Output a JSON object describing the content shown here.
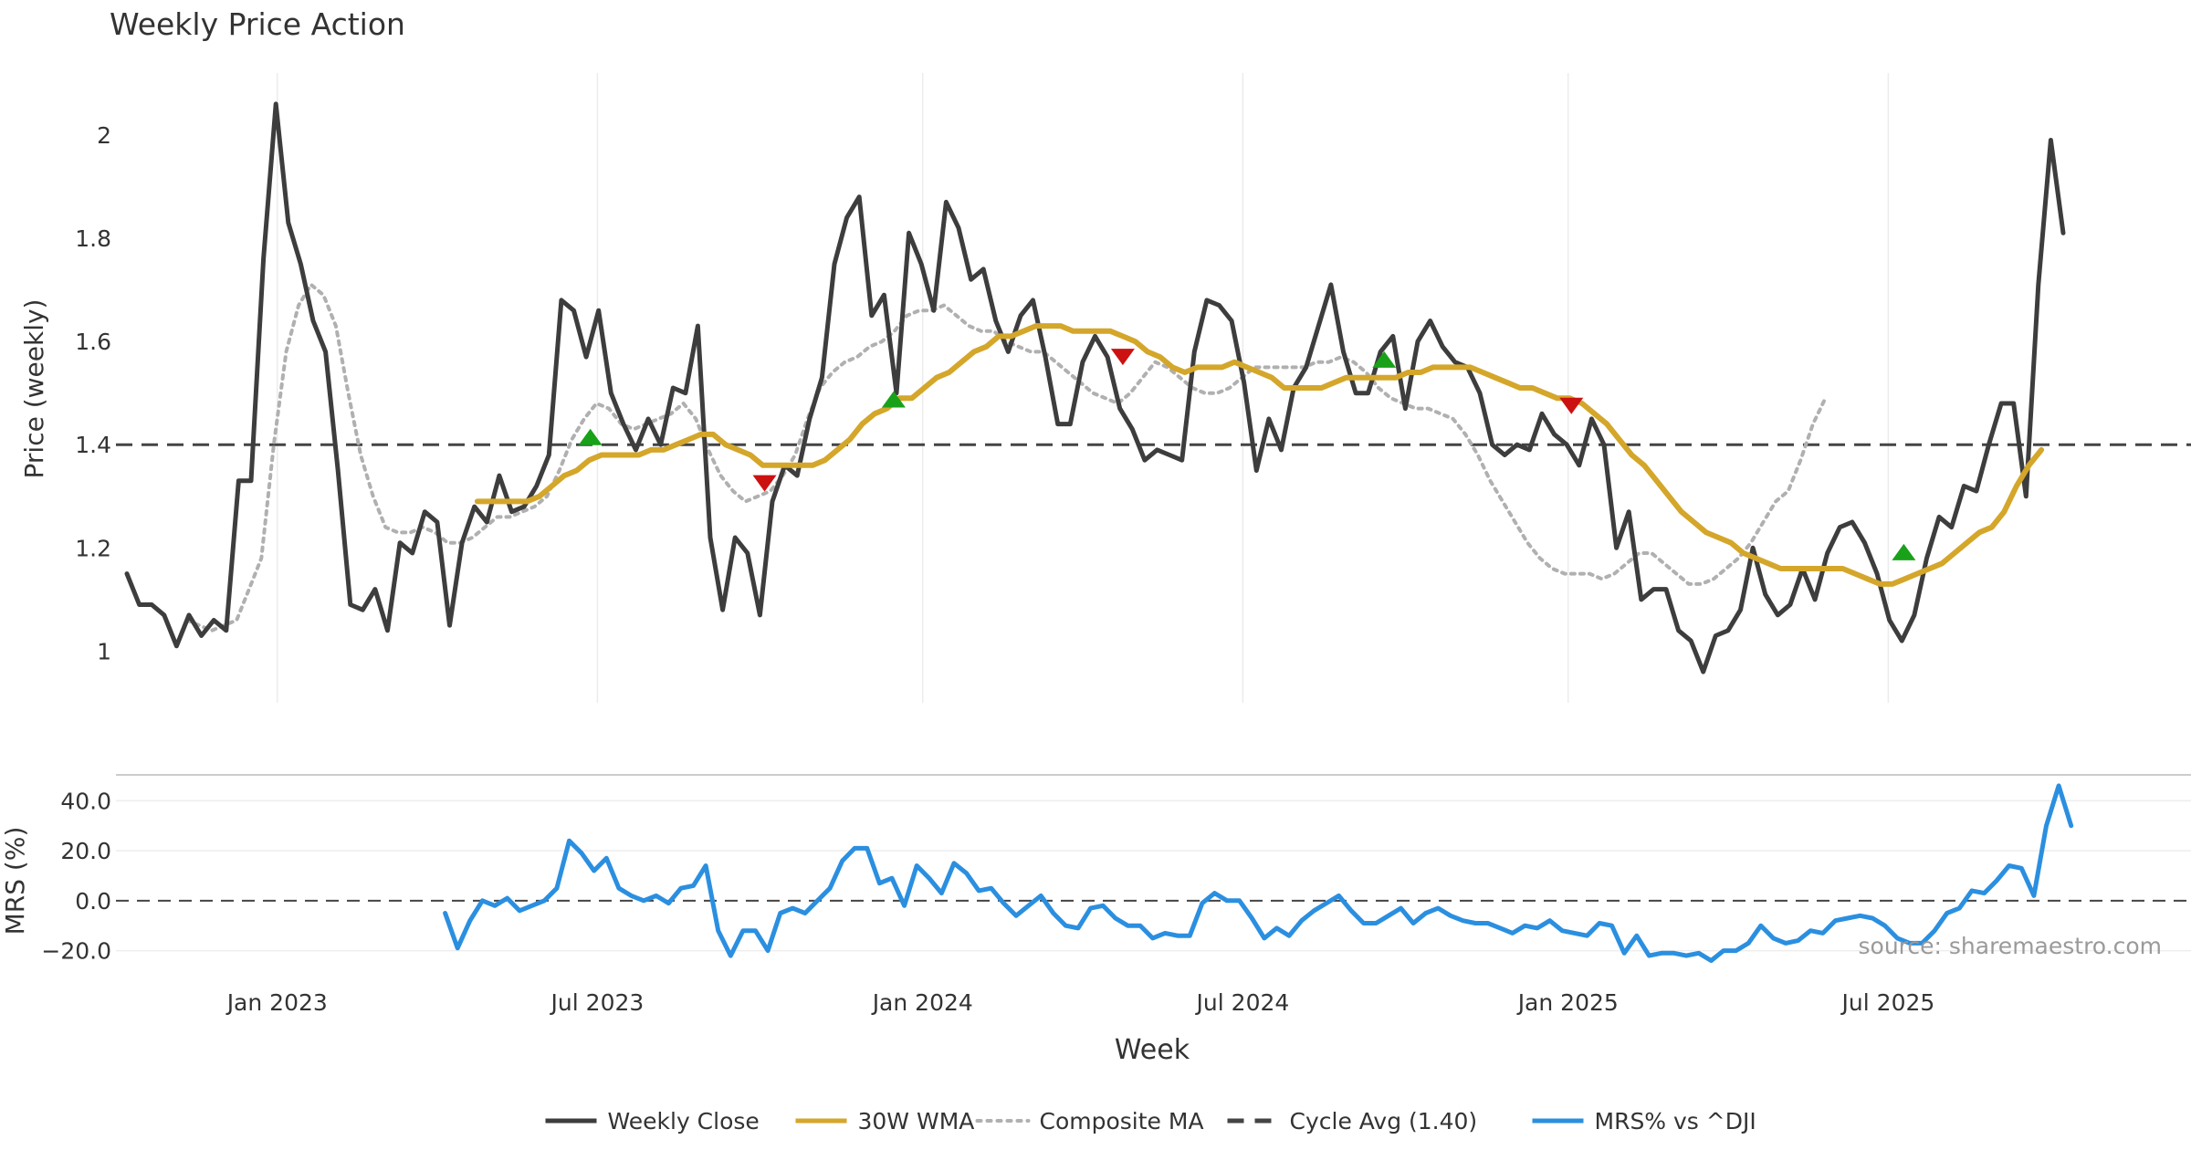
{
  "chart_data": [
    {
      "type": "line",
      "panel": "price",
      "title": "Weekly Price Action",
      "ylabel": "Price (weekly)",
      "ylim": [
        0.9,
        2.12
      ],
      "yticks": [
        1,
        1.2,
        1.4,
        1.6,
        1.8,
        2
      ],
      "ytick_labels": [
        "1",
        "1.2",
        "1.4",
        "1.6",
        "1.8",
        "2"
      ],
      "reference_line": 1.4,
      "series": [
        {
          "name": "Weekly Close",
          "color": "#3d3d3d",
          "style": "solid",
          "x_start": 2022.767,
          "step": 0.019231,
          "values": [
            1.15,
            1.09,
            1.09,
            1.07,
            1.01,
            1.07,
            1.03,
            1.06,
            1.04,
            1.33,
            1.33,
            1.76,
            2.06,
            1.83,
            1.75,
            1.64,
            1.58,
            1.35,
            1.09,
            1.08,
            1.12,
            1.04,
            1.21,
            1.19,
            1.27,
            1.25,
            1.05,
            1.21,
            1.28,
            1.25,
            1.34,
            1.27,
            1.28,
            1.32,
            1.38,
            1.68,
            1.66,
            1.57,
            1.66,
            1.5,
            1.44,
            1.39,
            1.45,
            1.4,
            1.51,
            1.5,
            1.63,
            1.22,
            1.08,
            1.22,
            1.19,
            1.07,
            1.29,
            1.36,
            1.34,
            1.45,
            1.53,
            1.75,
            1.84,
            1.88,
            1.65,
            1.69,
            1.5,
            1.81,
            1.75,
            1.66,
            1.87,
            1.82,
            1.72,
            1.74,
            1.64,
            1.58,
            1.65,
            1.68,
            1.57,
            1.44,
            1.44,
            1.56,
            1.61,
            1.57,
            1.47,
            1.43,
            1.37,
            1.39,
            1.38,
            1.37,
            1.58,
            1.68,
            1.67,
            1.64,
            1.52,
            1.35,
            1.45,
            1.39,
            1.51,
            1.55,
            1.63,
            1.71,
            1.58,
            1.5,
            1.5,
            1.58,
            1.61,
            1.47,
            1.6,
            1.64,
            1.59,
            1.56,
            1.55,
            1.5,
            1.4,
            1.38,
            1.4,
            1.39,
            1.46,
            1.42,
            1.4,
            1.36,
            1.45,
            1.4,
            1.2,
            1.27,
            1.1,
            1.12,
            1.12,
            1.04,
            1.02,
            0.96,
            1.03,
            1.04,
            1.08,
            1.2,
            1.11,
            1.07,
            1.09,
            1.16,
            1.1,
            1.19,
            1.24,
            1.25,
            1.21,
            1.15,
            1.06,
            1.02,
            1.07,
            1.18,
            1.26,
            1.24,
            1.32,
            1.31,
            1.4,
            1.48,
            1.48,
            1.3,
            1.71,
            1.99,
            1.81
          ]
        },
        {
          "name": "30W WMA",
          "color": "#d4a62a",
          "style": "solid",
          "x_start": 2023.31,
          "step": 0.019231,
          "values": [
            1.29,
            1.29,
            1.29,
            1.29,
            1.29,
            1.3,
            1.32,
            1.34,
            1.35,
            1.37,
            1.38,
            1.38,
            1.38,
            1.38,
            1.39,
            1.39,
            1.4,
            1.41,
            1.42,
            1.42,
            1.4,
            1.39,
            1.38,
            1.36,
            1.36,
            1.36,
            1.36,
            1.36,
            1.37,
            1.39,
            1.41,
            1.44,
            1.46,
            1.47,
            1.49,
            1.49,
            1.51,
            1.53,
            1.54,
            1.56,
            1.58,
            1.59,
            1.61,
            1.61,
            1.62,
            1.63,
            1.63,
            1.63,
            1.62,
            1.62,
            1.62,
            1.62,
            1.61,
            1.6,
            1.58,
            1.57,
            1.55,
            1.54,
            1.55,
            1.55,
            1.55,
            1.56,
            1.55,
            1.54,
            1.53,
            1.51,
            1.51,
            1.51,
            1.51,
            1.52,
            1.53,
            1.53,
            1.53,
            1.53,
            1.53,
            1.54,
            1.54,
            1.55,
            1.55,
            1.55,
            1.55,
            1.54,
            1.53,
            1.52,
            1.51,
            1.51,
            1.5,
            1.49,
            1.49,
            1.48,
            1.46,
            1.44,
            1.41,
            1.38,
            1.36,
            1.33,
            1.3,
            1.27,
            1.25,
            1.23,
            1.22,
            1.21,
            1.19,
            1.18,
            1.17,
            1.16,
            1.16,
            1.16,
            1.16,
            1.16,
            1.16,
            1.15,
            1.14,
            1.13,
            1.13,
            1.14,
            1.15,
            1.16,
            1.17,
            1.19,
            1.21,
            1.23,
            1.24,
            1.27,
            1.32,
            1.36,
            1.39
          ]
        },
        {
          "name": "Composite MA",
          "color": "#b0b0b0",
          "style": "dotted",
          "x_start": 2022.86,
          "step": 0.019231,
          "values": [
            1.06,
            1.05,
            1.04,
            1.05,
            1.06,
            1.12,
            1.18,
            1.4,
            1.58,
            1.67,
            1.71,
            1.69,
            1.63,
            1.5,
            1.38,
            1.3,
            1.24,
            1.23,
            1.23,
            1.24,
            1.23,
            1.21,
            1.21,
            1.22,
            1.24,
            1.26,
            1.26,
            1.27,
            1.28,
            1.3,
            1.35,
            1.41,
            1.45,
            1.48,
            1.47,
            1.44,
            1.43,
            1.44,
            1.45,
            1.46,
            1.48,
            1.45,
            1.39,
            1.34,
            1.31,
            1.29,
            1.3,
            1.31,
            1.34,
            1.38,
            1.45,
            1.51,
            1.54,
            1.56,
            1.57,
            1.59,
            1.6,
            1.62,
            1.65,
            1.66,
            1.66,
            1.67,
            1.65,
            1.63,
            1.62,
            1.62,
            1.6,
            1.59,
            1.58,
            1.58,
            1.56,
            1.54,
            1.52,
            1.5,
            1.49,
            1.48,
            1.5,
            1.53,
            1.56,
            1.55,
            1.53,
            1.51,
            1.5,
            1.5,
            1.51,
            1.53,
            1.55,
            1.55,
            1.55,
            1.55,
            1.55,
            1.56,
            1.56,
            1.57,
            1.56,
            1.54,
            1.51,
            1.49,
            1.48,
            1.47,
            1.47,
            1.46,
            1.45,
            1.42,
            1.38,
            1.33,
            1.29,
            1.25,
            1.21,
            1.18,
            1.16,
            1.15,
            1.15,
            1.15,
            1.14,
            1.15,
            1.17,
            1.19,
            1.19,
            1.17,
            1.15,
            1.13,
            1.13,
            1.14,
            1.16,
            1.18,
            1.21,
            1.25,
            1.29,
            1.31,
            1.37,
            1.44,
            1.49
          ]
        }
      ],
      "markers": [
        {
          "type": "buy",
          "x": 2023.485,
          "y": 1.415,
          "color": "#1aa11a"
        },
        {
          "type": "sell",
          "x": 2023.755,
          "y": 1.325,
          "color": "#cc1111"
        },
        {
          "type": "buy",
          "x": 2023.955,
          "y": 1.488,
          "color": "#1aa11a"
        },
        {
          "type": "sell",
          "x": 2024.31,
          "y": 1.57,
          "color": "#cc1111"
        },
        {
          "type": "buy",
          "x": 2024.715,
          "y": 1.565,
          "color": "#1aa11a"
        },
        {
          "type": "sell",
          "x": 2025.005,
          "y": 1.475,
          "color": "#cc1111"
        },
        {
          "type": "buy",
          "x": 2025.52,
          "y": 1.192,
          "color": "#1aa11a"
        }
      ]
    },
    {
      "type": "line",
      "panel": "mrs",
      "ylabel": "MRS (%)",
      "xlabel": "Week",
      "ylim": [
        -26,
        50
      ],
      "yticks": [
        -20,
        0,
        20,
        40
      ],
      "ytick_labels": [
        "−20.0",
        "0.0",
        "20.0",
        "40.0"
      ],
      "reference_line": 0,
      "series": [
        {
          "name": "MRS% vs ^DJI",
          "color": "#2b8fe0",
          "style": "solid",
          "x_start": 2023.26,
          "step": 0.019231,
          "values": [
            -5,
            -19,
            -8,
            0,
            -2,
            1,
            -4,
            -2,
            0,
            5,
            24,
            19,
            12,
            17,
            5,
            2,
            0,
            2,
            -1,
            5,
            6,
            14,
            -12,
            -22,
            -12,
            -12,
            -20,
            -5,
            -3,
            -5,
            0,
            5,
            16,
            21,
            21,
            7,
            9,
            -2,
            14,
            9,
            3,
            15,
            11,
            4,
            5,
            -1,
            -6,
            -2,
            2,
            -5,
            -10,
            -11,
            -3,
            -2,
            -7,
            -10,
            -10,
            -15,
            -13,
            -14,
            -14,
            -1,
            3,
            0,
            0,
            -7,
            -15,
            -11,
            -14,
            -8,
            -4,
            -1,
            2,
            -4,
            -9,
            -9,
            -6,
            -3,
            -9,
            -5,
            -3,
            -6,
            -8,
            -9,
            -9,
            -11,
            -13,
            -10,
            -11,
            -8,
            -12,
            -13,
            -14,
            -9,
            -10,
            -21,
            -14,
            -22,
            -21,
            -21,
            -22,
            -21,
            -24,
            -20,
            -20,
            -17,
            -10,
            -15,
            -17,
            -16,
            -12,
            -13,
            -8,
            -7,
            -6,
            -7,
            -10,
            -15,
            -17,
            -17,
            -12,
            -5,
            -3,
            4,
            3,
            8,
            14,
            13,
            2,
            30,
            46,
            30
          ]
        }
      ]
    }
  ],
  "x_axis": {
    "label": "Week",
    "ticks": [
      {
        "label": "Jan 2023",
        "x": 2023.0
      },
      {
        "label": "Jul 2023",
        "x": 2023.496
      },
      {
        "label": "Jan 2024",
        "x": 2024.0
      },
      {
        "label": "Jul 2024",
        "x": 2024.496
      },
      {
        "label": "Jan 2025",
        "x": 2025.0
      },
      {
        "label": "Jul 2025",
        "x": 2025.496
      }
    ]
  },
  "legend": {
    "placement": "bottom-center",
    "entries": [
      {
        "label": "Weekly Close",
        "color": "#3d3d3d",
        "style": "solid"
      },
      {
        "label": "30W WMA",
        "color": "#d4a62a",
        "style": "solid"
      },
      {
        "label": "Composite MA",
        "color": "#b0b0b0",
        "style": "dotted"
      },
      {
        "label": "Cycle Avg (1.40)",
        "color": "#444444",
        "style": "dashed"
      },
      {
        "label": "MRS% vs ^DJI",
        "color": "#2b8fe0",
        "style": "solid"
      }
    ]
  },
  "source_note": "source: sharemaestro.com"
}
